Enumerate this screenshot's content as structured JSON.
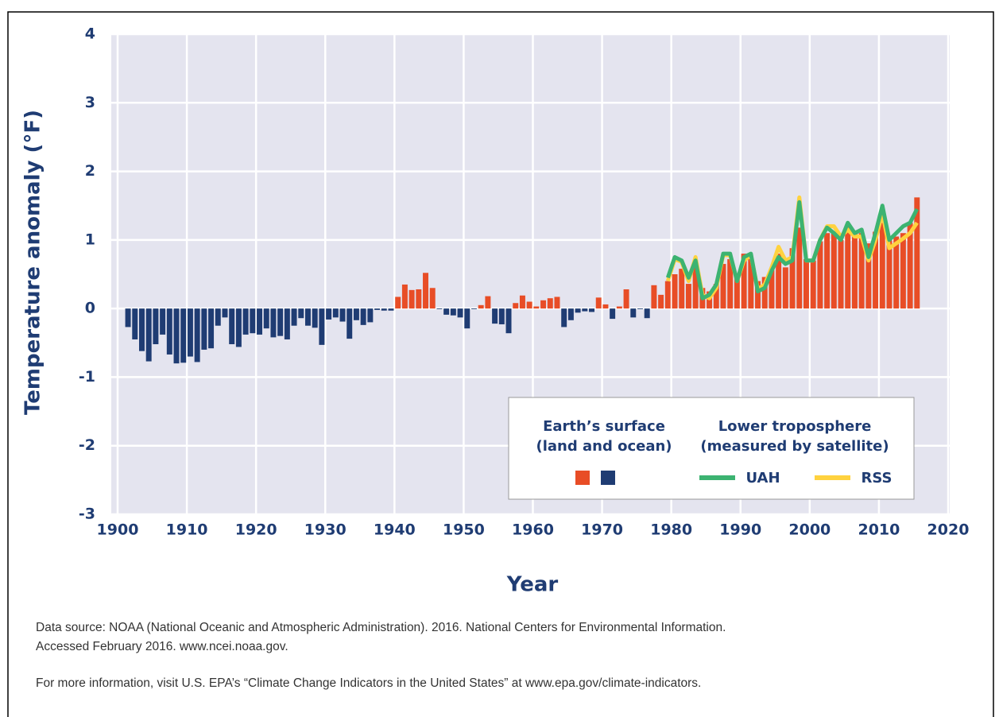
{
  "chart_data": {
    "type": "bar_line",
    "y_label": "Temperature anomaly (°F)",
    "x_label": "Year",
    "xlim": [
      1900,
      2020
    ],
    "xticks": [
      1900,
      1910,
      1920,
      1930,
      1940,
      1950,
      1960,
      1970,
      1980,
      1990,
      2000,
      2010,
      2020
    ],
    "ylim": [
      -3,
      4
    ],
    "yticks": [
      -3,
      -2,
      -1,
      0,
      1,
      2,
      3,
      4
    ],
    "grid": true,
    "x": [
      1901,
      1902,
      1903,
      1904,
      1905,
      1906,
      1907,
      1908,
      1909,
      1910,
      1911,
      1912,
      1913,
      1914,
      1915,
      1916,
      1917,
      1918,
      1919,
      1920,
      1921,
      1922,
      1923,
      1924,
      1925,
      1926,
      1927,
      1928,
      1929,
      1930,
      1931,
      1932,
      1933,
      1934,
      1935,
      1936,
      1937,
      1938,
      1939,
      1940,
      1941,
      1942,
      1943,
      1944,
      1945,
      1946,
      1947,
      1948,
      1949,
      1950,
      1951,
      1952,
      1953,
      1954,
      1955,
      1956,
      1957,
      1958,
      1959,
      1960,
      1961,
      1962,
      1963,
      1964,
      1965,
      1966,
      1967,
      1968,
      1969,
      1970,
      1971,
      1972,
      1973,
      1974,
      1975,
      1976,
      1977,
      1978,
      1979,
      1980,
      1981,
      1982,
      1983,
      1984,
      1985,
      1986,
      1987,
      1988,
      1989,
      1990,
      1991,
      1992,
      1993,
      1994,
      1995,
      1996,
      1997,
      1998,
      1999,
      2000,
      2001,
      2002,
      2003,
      2004,
      2005,
      2006,
      2007,
      2008,
      2009,
      2010,
      2011,
      2012,
      2013,
      2014,
      2015
    ],
    "values": [
      -0.27,
      -0.45,
      -0.62,
      -0.77,
      -0.52,
      -0.38,
      -0.67,
      -0.8,
      -0.79,
      -0.7,
      -0.78,
      -0.6,
      -0.58,
      -0.25,
      -0.13,
      -0.52,
      -0.56,
      -0.38,
      -0.36,
      -0.38,
      -0.29,
      -0.42,
      -0.4,
      -0.45,
      -0.25,
      -0.14,
      -0.25,
      -0.28,
      -0.53,
      -0.16,
      -0.13,
      -0.19,
      -0.44,
      -0.17,
      -0.24,
      -0.2,
      -0.02,
      -0.03,
      -0.03,
      0.17,
      0.35,
      0.27,
      0.28,
      0.52,
      0.3,
      -0.01,
      -0.09,
      -0.1,
      -0.13,
      -0.29,
      -0.01,
      0.05,
      0.18,
      -0.22,
      -0.23,
      -0.36,
      0.08,
      0.19,
      0.1,
      0.03,
      0.12,
      0.15,
      0.17,
      -0.27,
      -0.17,
      -0.06,
      -0.04,
      -0.05,
      0.16,
      0.06,
      -0.15,
      0.03,
      0.28,
      -0.13,
      -0.01,
      -0.14,
      0.34,
      0.2,
      0.4,
      0.5,
      0.58,
      0.36,
      0.6,
      0.3,
      0.25,
      0.36,
      0.65,
      0.72,
      0.45,
      0.8,
      0.72,
      0.4,
      0.46,
      0.56,
      0.8,
      0.6,
      0.88,
      1.18,
      0.72,
      0.7,
      0.98,
      1.1,
      1.12,
      1.0,
      1.2,
      1.1,
      1.1,
      0.95,
      1.12,
      1.25,
      1.0,
      1.05,
      1.1,
      1.25,
      1.62
    ],
    "positive_color": "#e84d26",
    "negative_color": "#1f3c73",
    "bars_legend": [
      "Earth’s surface",
      "(land and ocean)"
    ],
    "lines_legend": [
      "Lower troposphere",
      "(measured by satellite)"
    ],
    "lines": [
      {
        "name": "UAH",
        "color": "#3cb371",
        "x": [
          1979,
          1980,
          1981,
          1982,
          1983,
          1984,
          1985,
          1986,
          1987,
          1988,
          1989,
          1990,
          1991,
          1992,
          1993,
          1994,
          1995,
          1996,
          1997,
          1998,
          1999,
          2000,
          2001,
          2002,
          2003,
          2004,
          2005,
          2006,
          2007,
          2008,
          2009,
          2010,
          2011,
          2012,
          2013,
          2014,
          2015
        ],
        "values": [
          0.45,
          0.75,
          0.7,
          0.45,
          0.7,
          0.15,
          0.2,
          0.35,
          0.8,
          0.8,
          0.4,
          0.75,
          0.8,
          0.25,
          0.3,
          0.55,
          0.75,
          0.65,
          0.7,
          1.55,
          0.7,
          0.7,
          1.0,
          1.18,
          1.1,
          1.0,
          1.25,
          1.1,
          1.15,
          0.75,
          1.1,
          1.5,
          1.0,
          1.1,
          1.2,
          1.25,
          1.45
        ]
      },
      {
        "name": "RSS",
        "color": "#ffd23f",
        "x": [
          1979,
          1980,
          1981,
          1982,
          1983,
          1984,
          1985,
          1986,
          1987,
          1988,
          1989,
          1990,
          1991,
          1992,
          1993,
          1994,
          1995,
          1996,
          1997,
          1998,
          1999,
          2000,
          2001,
          2002,
          2003,
          2004,
          2005,
          2006,
          2007,
          2008,
          2009,
          2010,
          2011,
          2012,
          2013,
          2014,
          2015
        ],
        "values": [
          0.4,
          0.72,
          0.68,
          0.4,
          0.75,
          0.2,
          0.15,
          0.3,
          0.78,
          0.78,
          0.4,
          0.7,
          0.78,
          0.28,
          0.35,
          0.6,
          0.9,
          0.7,
          0.75,
          1.62,
          0.7,
          0.7,
          1.0,
          1.2,
          1.2,
          1.05,
          1.15,
          1.05,
          1.05,
          0.7,
          1.0,
          1.4,
          0.88,
          0.95,
          1.02,
          1.1,
          1.25
        ]
      }
    ]
  },
  "notes": [
    "Data source: NOAA (National Oceanic and Atmospheric Administration). 2016. National Centers for Environmental Information.",
    "Accessed February 2016. www.ncei.noaa.gov.",
    "For more information, visit U.S. EPA’s “Climate Change Indicators in the United States” at www.epa.gov/climate-indicators."
  ]
}
